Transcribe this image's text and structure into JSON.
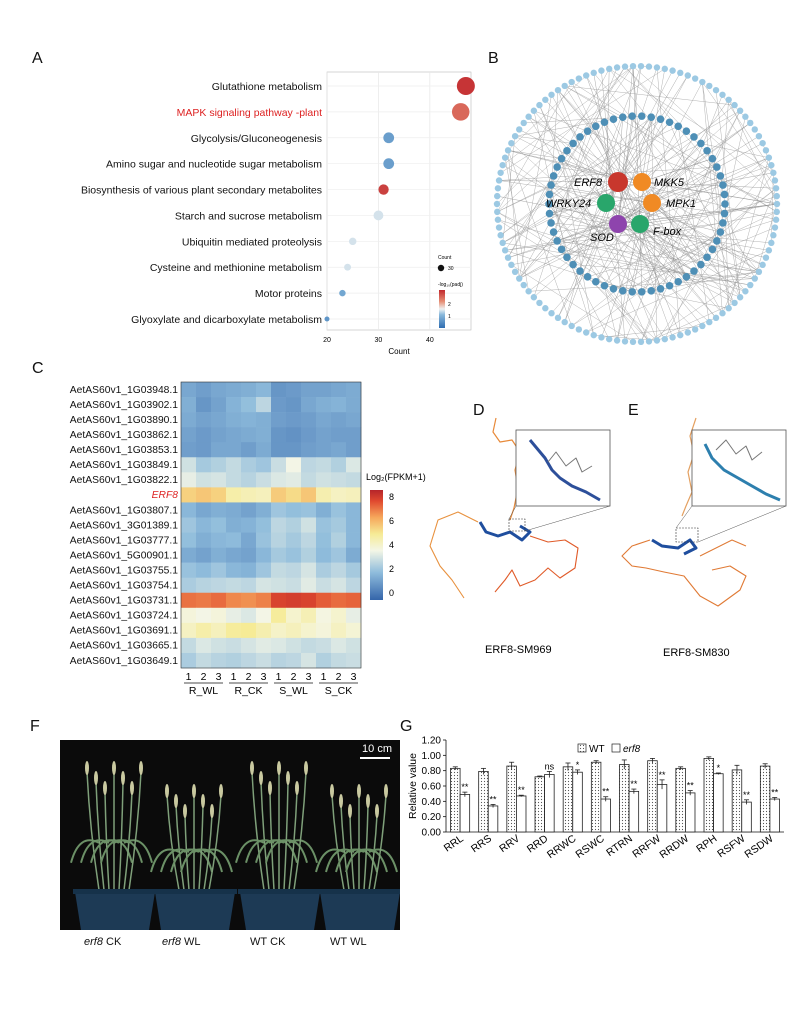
{
  "panel_labels": {
    "a": "A",
    "b": "B",
    "c": "C",
    "d": "D",
    "e": "E",
    "f": "F",
    "g": "G"
  },
  "colors": {
    "high": "#c1272d",
    "mid": "#f3ef9b",
    "low": "#3c6fb4",
    "wt": "#ffffff",
    "network_orange": "#f08a24",
    "network_green": "#29a66b",
    "network_purple": "#8e44ad",
    "network_red": "#c8372d"
  },
  "chart_data": [
    {
      "type": "scatter",
      "subtype": "dot-plot",
      "categories": [
        "Glutathione metabolism",
        "MAPK signaling pathway -plant",
        "Glycolysis/Gluconeogenesis",
        "Amino sugar and nucleotide sugar metabolism",
        "Biosynthesis of various plant secondary metabolites",
        "Starch and sucrose metabolism",
        "Ubiquitin mediated proteolysis",
        "Cysteine and methionine metabolism",
        "Motor proteins",
        "Glyoxylate and dicarboxylate metabolism"
      ],
      "highlight_category": "MAPK signaling pathway -plant",
      "count": [
        47,
        46,
        32,
        32,
        31,
        30,
        25,
        24,
        23,
        20
      ],
      "log10_padj": [
        2.5,
        2.1,
        0.6,
        0.6,
        2.4,
        1.2,
        1.2,
        1.2,
        0.7,
        0.5
      ],
      "xlabel": "Count",
      "xticks": [
        20,
        30,
        40
      ],
      "xlim": [
        20,
        48
      ],
      "legend_size_title": "Count",
      "legend_size_value": "30",
      "legend_color_title": "-log₁₀(padj)",
      "legend_color_ticks": [
        "2",
        "1"
      ]
    },
    {
      "type": "heatmap",
      "rows": [
        "AetAS60v1_1G03948.1",
        "AetAS60v1_1G03902.1",
        "AetAS60v1_1G03890.1",
        "AetAS60v1_1G03862.1",
        "AetAS60v1_1G03853.1",
        "AetAS60v1_1G03849.1",
        "AetAS60v1_1G03822.1",
        "ERF8",
        "AetAS60v1_1G03807.1",
        "AetAS60v1_3G01389.1",
        "AetAS60v1_1G03777.1",
        "AetAS60v1_5G00901.1",
        "AetAS60v1_1G03755.1",
        "AetAS60v1_1G03754.1",
        "AetAS60v1_1G03731.1",
        "AetAS60v1_1G03724.1",
        "AetAS60v1_1G03691.1",
        "AetAS60v1_1G03665.1",
        "AetAS60v1_1G03649.1"
      ],
      "highlight_row": "ERF8",
      "columns": [
        "1",
        "2",
        "3",
        "1",
        "2",
        "3",
        "1",
        "2",
        "3",
        "1",
        "2",
        "3"
      ],
      "groups": [
        "R_WL",
        "R_CK",
        "S_WL",
        "S_CK"
      ],
      "values": [
        [
          1.6,
          1.4,
          1.6,
          1.7,
          1.8,
          2.0,
          1.2,
          1.3,
          1.5,
          1.5,
          1.6,
          1.7
        ],
        [
          1.8,
          1.2,
          1.5,
          1.9,
          2.2,
          2.9,
          1.3,
          1.2,
          1.6,
          1.8,
          1.9,
          1.7
        ],
        [
          1.7,
          1.5,
          1.6,
          1.8,
          1.9,
          1.8,
          1.4,
          1.3,
          1.4,
          1.6,
          1.5,
          1.6
        ],
        [
          1.5,
          1.3,
          1.5,
          1.6,
          1.7,
          1.8,
          1.2,
          1.1,
          1.3,
          1.5,
          1.4,
          1.4
        ],
        [
          1.4,
          1.3,
          1.6,
          1.6,
          1.4,
          1.7,
          1.2,
          1.2,
          1.4,
          1.5,
          1.6,
          1.4
        ],
        [
          3.2,
          2.5,
          2.7,
          3.0,
          2.6,
          2.4,
          3.1,
          3.8,
          2.9,
          3.0,
          2.7,
          3.4
        ],
        [
          3.6,
          3.2,
          3.3,
          3.0,
          2.8,
          3.1,
          3.4,
          3.5,
          3.0,
          3.2,
          3.1,
          3.0
        ],
        [
          5.6,
          5.8,
          5.6,
          4.8,
          4.6,
          4.5,
          5.7,
          5.4,
          5.8,
          4.7,
          4.4,
          4.5
        ],
        [
          2.0,
          1.6,
          1.8,
          1.7,
          1.5,
          1.8,
          2.4,
          2.2,
          2.3,
          1.8,
          2.3,
          2.0
        ],
        [
          2.4,
          2.0,
          2.2,
          1.8,
          1.9,
          2.2,
          2.9,
          2.7,
          3.2,
          2.3,
          2.5,
          2.0
        ],
        [
          2.2,
          1.8,
          2.0,
          2.1,
          1.6,
          2.3,
          2.8,
          2.5,
          2.9,
          2.2,
          2.7,
          2.0
        ],
        [
          1.7,
          1.5,
          1.8,
          1.6,
          1.5,
          2.0,
          2.5,
          2.3,
          2.7,
          2.1,
          2.4,
          1.7
        ],
        [
          2.3,
          2.1,
          2.4,
          2.0,
          1.9,
          2.4,
          3.0,
          2.9,
          3.3,
          2.6,
          2.9,
          2.5
        ],
        [
          2.6,
          2.8,
          2.9,
          3.0,
          2.9,
          3.3,
          3.2,
          3.1,
          3.5,
          3.1,
          3.3,
          2.9
        ],
        [
          7.1,
          7.0,
          7.2,
          6.8,
          6.7,
          6.9,
          7.8,
          7.9,
          7.8,
          7.4,
          7.2,
          7.3
        ],
        [
          4.0,
          3.8,
          4.0,
          3.6,
          3.4,
          3.8,
          5.0,
          4.2,
          4.6,
          3.9,
          4.2,
          3.6
        ],
        [
          4.4,
          4.8,
          4.5,
          5.0,
          5.1,
          4.7,
          4.3,
          4.5,
          4.2,
          4.0,
          4.4,
          4.1
        ],
        [
          3.0,
          3.4,
          3.2,
          3.1,
          3.3,
          3.5,
          3.4,
          3.2,
          3.0,
          3.1,
          3.4,
          3.2
        ],
        [
          2.6,
          3.0,
          2.8,
          2.7,
          2.9,
          3.1,
          2.8,
          2.9,
          3.3,
          2.7,
          3.0,
          3.1
        ]
      ],
      "legend_title": "Log₂(FPKM+1)",
      "legend_ticks": [
        "8",
        "6",
        "4",
        "2",
        "0"
      ],
      "vmin": 0,
      "vmax": 8.5
    },
    {
      "type": "bar",
      "categories": [
        "RRL",
        "RRS",
        "RRV",
        "RRD",
        "RRWC",
        "RSWC",
        "RTRN",
        "RRFW",
        "RRDW",
        "RPH",
        "RSFW",
        "RSDW"
      ],
      "series": [
        {
          "name": "WT",
          "values": [
            0.83,
            0.79,
            0.86,
            0.72,
            0.85,
            0.91,
            0.88,
            0.93,
            0.83,
            0.96,
            0.81,
            0.86
          ],
          "errors": [
            0.02,
            0.04,
            0.05,
            0.01,
            0.05,
            0.02,
            0.06,
            0.03,
            0.02,
            0.02,
            0.06,
            0.03
          ]
        },
        {
          "name": "erf8",
          "values": [
            0.49,
            0.34,
            0.47,
            0.75,
            0.78,
            0.43,
            0.53,
            0.62,
            0.51,
            0.76,
            0.39,
            0.43
          ],
          "errors": [
            0.03,
            0.02,
            0.01,
            0.04,
            0.03,
            0.03,
            0.03,
            0.06,
            0.03,
            0.01,
            0.03,
            0.02
          ]
        }
      ],
      "annotations": [
        "**",
        "**",
        "**",
        "ns",
        "*",
        "**",
        "**",
        "**",
        "**",
        "*",
        "**",
        "**"
      ],
      "ylabel": "Relative value",
      "ylim": [
        0,
        1.2
      ],
      "yticks": [
        "0.00",
        "0.20",
        "0.40",
        "0.60",
        "0.80",
        "1.00",
        "1.20"
      ],
      "legend": [
        "WT",
        "erf8"
      ],
      "legend_placement": "top"
    }
  ],
  "network": {
    "hub_nodes": [
      {
        "label": "ERF8",
        "color": "network_red"
      },
      {
        "label": "MKK5",
        "color": "network_orange"
      },
      {
        "label": "WRKY24",
        "color": "network_green"
      },
      {
        "label": "MPK1",
        "color": "network_orange"
      },
      {
        "label": "SOD",
        "color": "network_purple"
      },
      {
        "label": "F-box",
        "color": "network_green"
      }
    ]
  },
  "structures": {
    "d_label": "ERF8-SM969",
    "e_label": "ERF8-SM830"
  },
  "photo": {
    "scale": "10 cm",
    "pots": [
      {
        "gene": "erf8",
        "cond": "CK"
      },
      {
        "gene": "erf8",
        "cond": "WL"
      },
      {
        "gene": "WT",
        "cond": "CK"
      },
      {
        "gene": "WT",
        "cond": "WL"
      }
    ]
  }
}
